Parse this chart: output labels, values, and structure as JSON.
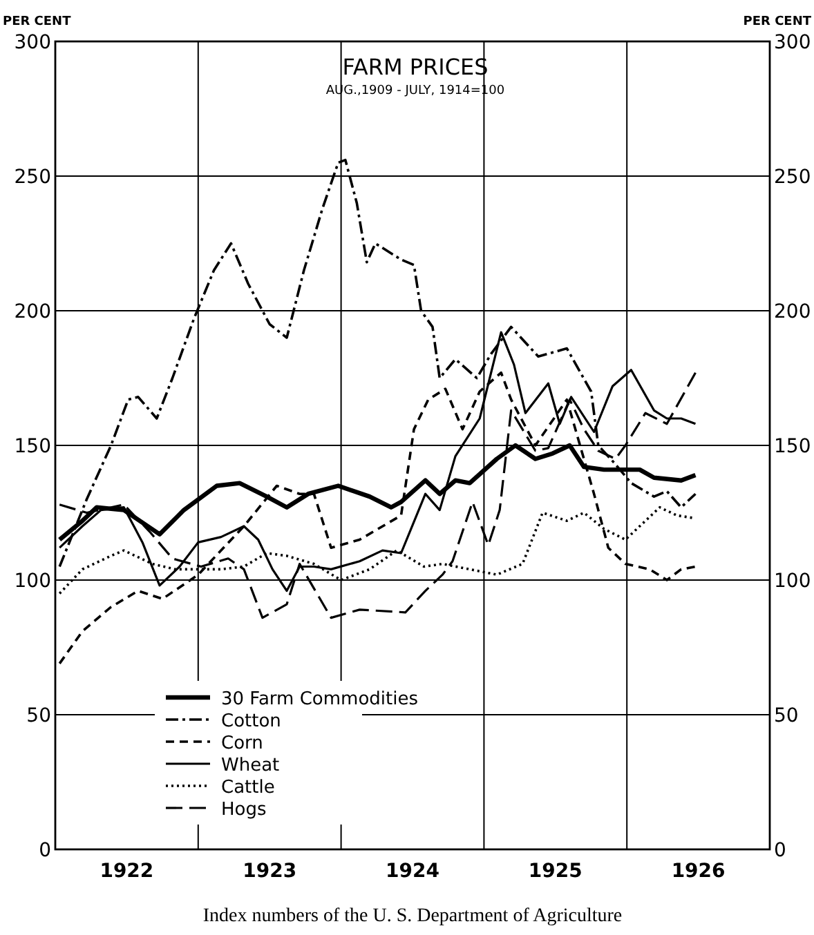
{
  "chart_data": {
    "type": "line",
    "title": "FARM PRICES",
    "subtitle": "AUG.,1909 - JULY, 1914=100",
    "ylabel": "PER CENT",
    "y2label": "PER CENT",
    "annotations": [
      "Index numbers of the U. S. Department of Agriculture"
    ],
    "xlim": [
      1922,
      1927
    ],
    "xticks": [
      {
        "value": 1922.5,
        "label": "1922"
      },
      {
        "value": 1923,
        "label": null
      },
      {
        "value": 1923.5,
        "label": "1923"
      },
      {
        "value": 1924,
        "label": null
      },
      {
        "value": 1924.5,
        "label": "1924"
      },
      {
        "value": 1925,
        "label": null
      },
      {
        "value": 1925.5,
        "label": "1925"
      },
      {
        "value": 1926,
        "label": null
      },
      {
        "value": 1926.5,
        "label": "1926"
      }
    ],
    "ylim": [
      0,
      300
    ],
    "yticks": [
      0,
      50,
      100,
      150,
      200,
      250,
      300
    ],
    "y2lim": [
      0,
      300
    ],
    "y2ticks": [
      0,
      50,
      100,
      150,
      200,
      250,
      300
    ],
    "grid": true,
    "legend": "bottom left",
    "series": [
      {
        "name": "30 Farm Commodities",
        "color": "#000000",
        "line_style": "solid",
        "x": [
          1922.03,
          1922.19,
          1922.29,
          1922.48,
          1922.73,
          1922.9,
          1923.13,
          1923.29,
          1923.48,
          1923.62,
          1923.77,
          1923.98,
          1924.2,
          1924.35,
          1924.42,
          1924.59,
          1924.69,
          1924.8,
          1924.9,
          1925.09,
          1925.22,
          1925.36,
          1925.48,
          1925.6,
          1925.7,
          1925.84,
          1926.09,
          1926.19,
          1926.38,
          1926.48
        ],
        "values": [
          115,
          122,
          127,
          126,
          117,
          126,
          135,
          136,
          131,
          127,
          132,
          135,
          131,
          127,
          129,
          137,
          132,
          137,
          136,
          145,
          150,
          145,
          147,
          150,
          142,
          141,
          141,
          138,
          137,
          139
        ]
      },
      {
        "name": "Cotton",
        "color": "#000000",
        "line_style": "dashdot",
        "x": [
          1922.03,
          1922.22,
          1922.39,
          1922.51,
          1922.58,
          1922.71,
          1922.82,
          1922.97,
          1923.11,
          1923.23,
          1923.35,
          1923.5,
          1923.62,
          1923.74,
          1923.87,
          1923.98,
          1924.03,
          1924.11,
          1924.18,
          1924.24,
          1924.42,
          1924.51,
          1924.56,
          1924.64,
          1924.69,
          1924.8,
          1924.95,
          1925.05,
          1925.19,
          1925.38,
          1925.58,
          1925.75,
          1925.8,
          1925.92,
          1926.03,
          1926.19,
          1926.28,
          1926.38,
          1926.48
        ],
        "values": [
          105,
          130,
          150,
          167,
          168,
          160,
          175,
          197,
          215,
          225,
          210,
          195,
          190,
          215,
          238,
          255,
          256,
          240,
          218,
          225,
          219,
          217,
          200,
          194,
          175,
          182,
          175,
          184,
          194,
          183,
          186,
          170,
          150,
          143,
          136,
          131,
          133,
          127,
          132
        ]
      },
      {
        "name": "Corn",
        "color": "#000000",
        "line_style": "dashed",
        "x": [
          1922.03,
          1922.19,
          1922.39,
          1922.58,
          1922.75,
          1923.0,
          1923.32,
          1923.55,
          1923.71,
          1923.81,
          1923.93,
          1924.13,
          1924.42,
          1924.51,
          1924.61,
          1924.73,
          1924.85,
          1924.97,
          1925.12,
          1925.19,
          1925.36,
          1925.58,
          1925.77,
          1925.87,
          1925.99,
          1926.16,
          1926.28,
          1926.38,
          1926.48
        ],
        "values": [
          69,
          81,
          90,
          96,
          93,
          102,
          120,
          135,
          132,
          132,
          112,
          115,
          124,
          156,
          167,
          171,
          156,
          170,
          177,
          167,
          150,
          167,
          132,
          112,
          106,
          104,
          100,
          104,
          105
        ]
      },
      {
        "name": "Wheat",
        "color": "#000000",
        "line_style": "solid",
        "x": [
          1922.03,
          1922.19,
          1922.32,
          1922.48,
          1922.61,
          1922.73,
          1922.87,
          1923.0,
          1923.16,
          1923.32,
          1923.42,
          1923.52,
          1923.62,
          1923.71,
          1923.81,
          1923.93,
          1924.13,
          1924.29,
          1924.42,
          1924.59,
          1924.69,
          1924.8,
          1924.97,
          1925.12,
          1925.21,
          1925.29,
          1925.45,
          1925.53,
          1925.61,
          1925.77,
          1925.9,
          1926.03,
          1926.19,
          1926.28,
          1926.38,
          1926.48
        ],
        "values": [
          112,
          120,
          126,
          127,
          114,
          98,
          105,
          114,
          116,
          120,
          115,
          104,
          96,
          105,
          105,
          104,
          107,
          111,
          110,
          132,
          126,
          146,
          160,
          192,
          180,
          162,
          173,
          158,
          168,
          155,
          172,
          178,
          163,
          160,
          160,
          158
        ]
      },
      {
        "name": "Cattle",
        "color": "#000000",
        "line_style": "dotted",
        "x": [
          1922.03,
          1922.19,
          1922.39,
          1922.48,
          1922.68,
          1922.84,
          1923.0,
          1923.16,
          1923.32,
          1923.48,
          1923.62,
          1923.81,
          1924.0,
          1924.2,
          1924.39,
          1924.58,
          1924.71,
          1924.9,
          1925.09,
          1925.27,
          1925.41,
          1925.58,
          1925.7,
          1925.84,
          1925.99,
          1926.23,
          1926.35,
          1926.47
        ],
        "values": [
          95,
          104,
          109,
          111,
          106,
          104,
          104,
          104,
          105,
          110,
          109,
          106,
          100,
          104,
          111,
          105,
          106,
          104,
          102,
          106,
          125,
          122,
          125,
          119,
          115,
          127,
          124,
          123
        ]
      },
      {
        "name": "Hogs",
        "color": "#000000",
        "line_style": "longdash",
        "x": [
          1922.03,
          1922.22,
          1922.48,
          1922.66,
          1922.82,
          1923.02,
          1923.21,
          1923.32,
          1923.45,
          1923.62,
          1923.71,
          1923.93,
          1924.13,
          1924.45,
          1924.59,
          1924.71,
          1924.78,
          1924.92,
          1925.03,
          1925.11,
          1925.19,
          1925.36,
          1925.45,
          1925.6,
          1925.7,
          1925.8,
          1925.92,
          1925.99,
          1926.13,
          1926.28,
          1926.48
        ],
        "values": [
          128,
          125,
          128,
          118,
          108,
          105,
          108,
          104,
          86,
          91,
          106,
          86,
          89,
          88,
          96,
          102,
          107,
          129,
          113,
          126,
          163,
          148,
          149,
          167,
          156,
          148,
          145,
          150,
          162,
          158,
          177
        ]
      }
    ]
  }
}
